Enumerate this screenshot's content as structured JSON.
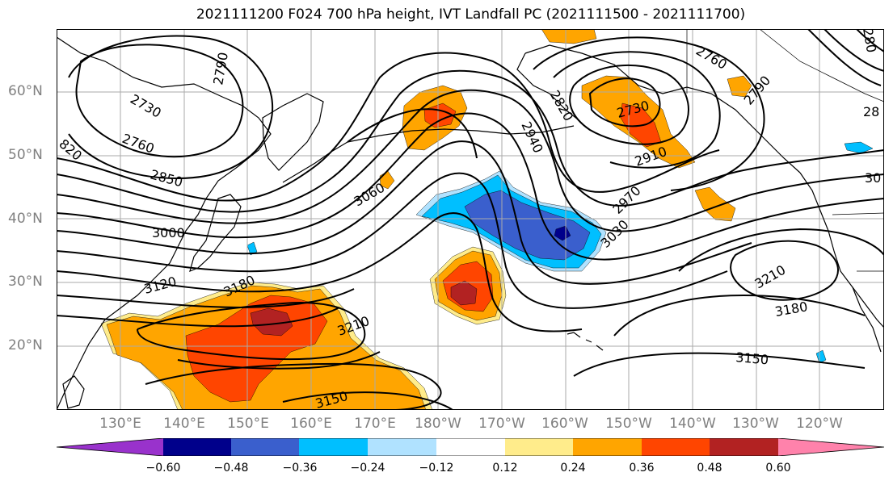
{
  "title": "2021111200 F024 700 hPa height, IVT Landfall PC (2021111500 - 2021111700)",
  "colors": {
    "neg_060": "#9932CC",
    "neg_048": "#00008B",
    "neg_036": "#3A5FCD",
    "neg_024": "#00BFFF",
    "neg_012": "#B0E2FF",
    "neutral": "#FFFFFF",
    "pos_012": "#FFEC8B",
    "pos_024": "#FFA500",
    "pos_036": "#FF4500",
    "pos_048": "#B22222",
    "pos_060": "#FF82AB",
    "contour": "#000000",
    "coast": "#000000",
    "grid": "#AAAAAA"
  },
  "lat_labels": [
    "60°N",
    "50°N",
    "40°N",
    "30°N",
    "20°N"
  ],
  "lon_labels": [
    "130°E",
    "140°E",
    "150°E",
    "160°E",
    "170°E",
    "180°W",
    "170°W",
    "160°W",
    "150°W",
    "140°W",
    "130°W",
    "120°W"
  ],
  "contour_labels": [
    {
      "text": "2790"
    },
    {
      "text": "2730"
    },
    {
      "text": "2760"
    },
    {
      "text": "2850"
    },
    {
      "text": "3000"
    },
    {
      "text": "3120"
    },
    {
      "text": "3180"
    },
    {
      "text": "3060"
    },
    {
      "text": "3210"
    },
    {
      "text": "3150"
    },
    {
      "text": "2820"
    },
    {
      "text": "2940"
    },
    {
      "text": "2730"
    },
    {
      "text": "2910"
    },
    {
      "text": "2970"
    },
    {
      "text": "3030"
    },
    {
      "text": "2760"
    },
    {
      "text": "2790"
    },
    {
      "text": "3210"
    },
    {
      "text": "3180"
    },
    {
      "text": "3150"
    },
    {
      "text": "820"
    },
    {
      "text": "28"
    },
    {
      "text": "30"
    },
    {
      "text": "280"
    }
  ],
  "colorbar": {
    "ticks": [
      "−0.60",
      "−0.48",
      "−0.36",
      "−0.24",
      "−0.12",
      "0.12",
      "0.24",
      "0.36",
      "0.48",
      "0.60"
    ]
  }
}
